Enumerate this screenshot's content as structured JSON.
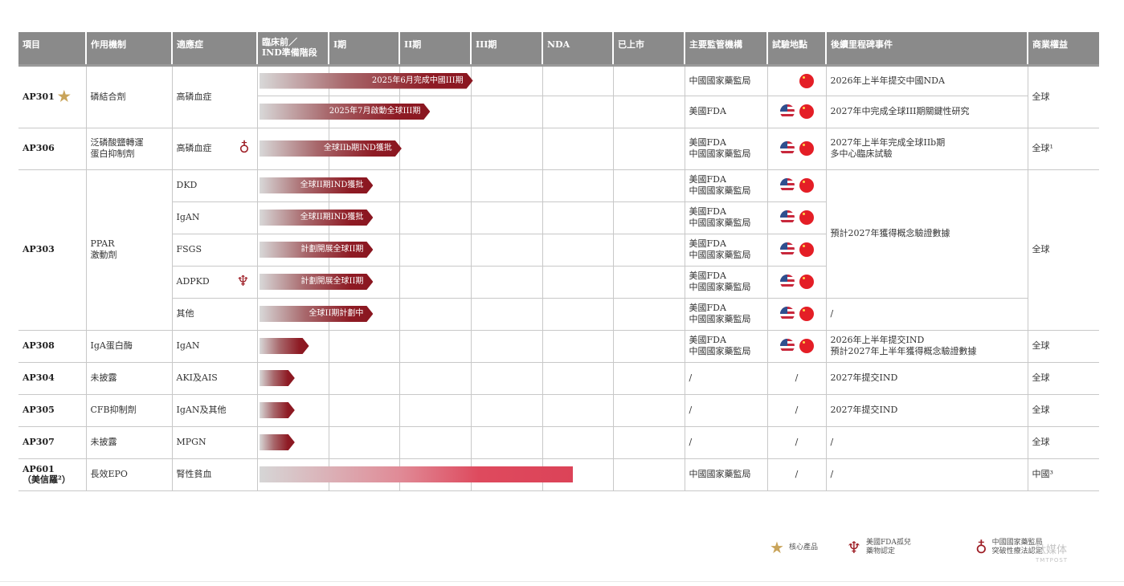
{
  "header": [
    "項目",
    "作用機制",
    "適應症",
    "臨床前／\nIND準備階段",
    "I期",
    "II期",
    "III期",
    "NDA",
    "已上市",
    "主要監管機構",
    "試驗地點",
    "後續里程碑事件",
    "商業權益"
  ],
  "ap301": {
    "name": "AP301",
    "mechanism": "磷結合劑",
    "indication": "高磷血症",
    "bar1": "2025年6月完成中國III期",
    "bar2": "2025年7月啟動全球III期",
    "reg1": "中國國家藥監局",
    "reg2": "美國FDA",
    "ms1": "2026年上半年提交中國NDA",
    "ms2": "2027年中完成全球III期關鍵性研究",
    "rights": "全球"
  },
  "ap306": {
    "name": "AP306",
    "mechanism": "泛磷酸鹽轉運\n蛋白抑制劑",
    "indication": "高磷血症",
    "bar": "全球IIb期IND獲批",
    "reg": "美國FDA\n中國國家藥監局",
    "ms": "2027年上半年完成全球IIb期\n多中心臨床試驗",
    "rights": "全球¹"
  },
  "ap303": {
    "name": "AP303",
    "mechanism": "PPAR\n激動劑",
    "indications": [
      "DKD",
      "IgAN",
      "FSGS",
      "ADPKD",
      "其他"
    ],
    "bars": [
      "全球II期IND獲批",
      "全球II期IND獲批",
      "計劃開展全球II期",
      "計劃開展全球II期",
      "全球II期計劃中"
    ],
    "reg": "美國FDA\n中國國家藥監局",
    "ms": "預計2027年獲得概念驗證數據",
    "ms_other": "/",
    "rights": "全球"
  },
  "ap308": {
    "name": "AP308",
    "mechanism": "IgA蛋白酶",
    "indication": "IgAN",
    "reg": "美國FDA\n中國國家藥監局",
    "ms": "2026年上半年提交IND\n預計2027年上半年獲得概念驗證數據",
    "rights": "全球"
  },
  "ap304": {
    "name": "AP304",
    "mechanism": "未披露",
    "indication": "AKI及AIS",
    "reg": "/",
    "site": "/",
    "ms": "2027年提交IND",
    "rights": "全球"
  },
  "ap305": {
    "name": "AP305",
    "mechanism": "CFB抑制劑",
    "indication": "IgAN及其他",
    "reg": "/",
    "site": "/",
    "ms": "2027年提交IND",
    "rights": "全球"
  },
  "ap307": {
    "name": "AP307",
    "mechanism": "未披露",
    "indication": "MPGN",
    "reg": "/",
    "site": "/",
    "ms": "/",
    "rights": "全球"
  },
  "ap601": {
    "name": "AP601\n（美信羅²）",
    "mechanism": "長效EPO",
    "indication": "腎性貧血",
    "reg": "中國國家藥監局",
    "site": "/",
    "ms": "/",
    "rights": "中國³"
  },
  "progress": {
    "ap301_cn": 3.0,
    "ap301_global": 2.4,
    "ap306": 2.0,
    "ap303": 1.6,
    "ap308": 0.7,
    "ap304": 0.5,
    "ap305": 0.5,
    "ap307": 0.5,
    "ap601": 4.4
  },
  "legend": {
    "core": "核心產品",
    "fda": "美國FDA孤兒\n藥物認定",
    "nmpa": "中國國家藥監局\n突破性療法認定"
  },
  "watermark": {
    "cn": "钛媒体",
    "en": "TMTPOST"
  },
  "colors": {
    "header_bg": "#8a8a8a",
    "bar_dark": "#8a1620",
    "bar_pink": "#dc4358",
    "star": "#c9a45a"
  },
  "icons": [
    "star-icon",
    "medal-icon",
    "trophy-icon",
    "us-flag-icon",
    "cn-flag-icon"
  ]
}
